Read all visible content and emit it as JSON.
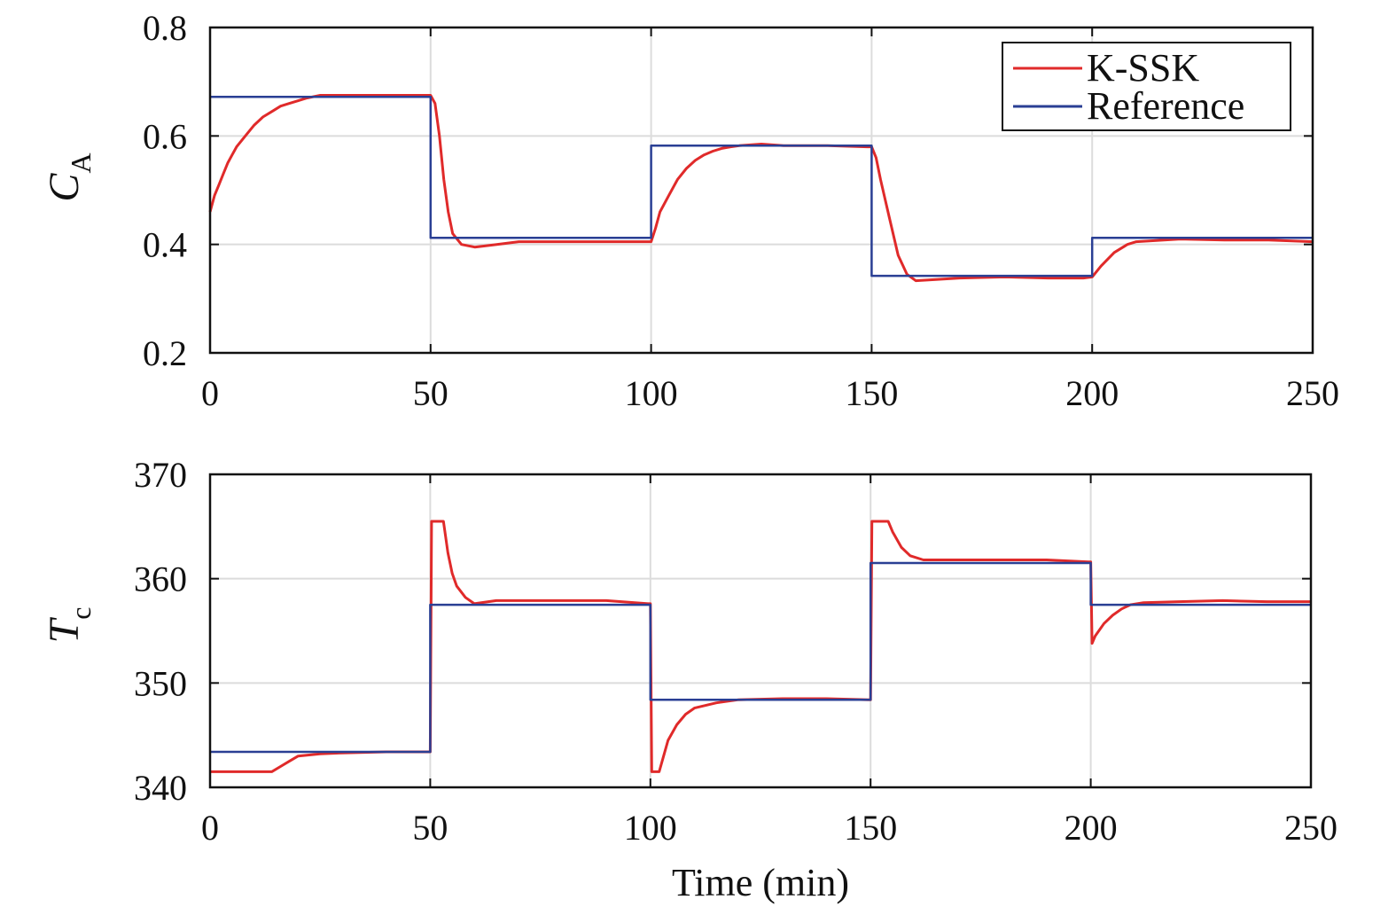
{
  "chart_data": [
    {
      "type": "line",
      "ylabel": "C",
      "ylabel_sub": "A",
      "xlim": [
        0,
        250
      ],
      "ylim": [
        0.2,
        0.8
      ],
      "xticks": [
        0,
        50,
        100,
        150,
        200,
        250
      ],
      "xtick_labels": [
        "0",
        "50",
        "100",
        "150",
        "200",
        "250"
      ],
      "yticks": [
        0.2,
        0.4,
        0.6,
        0.8
      ],
      "ytick_labels": [
        "0.2",
        "0.4",
        "0.6",
        "0.8"
      ],
      "grid": true,
      "legend_position": "top-right",
      "series": [
        {
          "name": "K-SSK",
          "color": "#e02a2a",
          "x": [
            0,
            1,
            2,
            3,
            4,
            5,
            6,
            8,
            10,
            12,
            14,
            16,
            18,
            20,
            22,
            25,
            30,
            35,
            40,
            45,
            49,
            50,
            51,
            52,
            53,
            54,
            55,
            57,
            60,
            65,
            70,
            80,
            90,
            99,
            100,
            101,
            102,
            104,
            106,
            108,
            110,
            112,
            114,
            116,
            118,
            120,
            125,
            130,
            140,
            149,
            150,
            151,
            152,
            154,
            156,
            158,
            160,
            170,
            180,
            190,
            198,
            200,
            202,
            205,
            208,
            210,
            220,
            230,
            240,
            250
          ],
          "y": [
            0.46,
            0.49,
            0.51,
            0.53,
            0.55,
            0.565,
            0.58,
            0.6,
            0.62,
            0.635,
            0.645,
            0.655,
            0.66,
            0.665,
            0.67,
            0.675,
            0.675,
            0.675,
            0.675,
            0.675,
            0.675,
            0.675,
            0.66,
            0.6,
            0.52,
            0.46,
            0.42,
            0.4,
            0.395,
            0.4,
            0.405,
            0.405,
            0.405,
            0.405,
            0.405,
            0.43,
            0.46,
            0.49,
            0.52,
            0.54,
            0.555,
            0.565,
            0.572,
            0.577,
            0.58,
            0.582,
            0.585,
            0.582,
            0.582,
            0.58,
            0.58,
            0.56,
            0.52,
            0.45,
            0.38,
            0.345,
            0.333,
            0.338,
            0.34,
            0.338,
            0.338,
            0.34,
            0.36,
            0.385,
            0.4,
            0.405,
            0.41,
            0.408,
            0.408,
            0.405
          ]
        },
        {
          "name": "Reference",
          "color": "#2a3f94",
          "x": [
            0,
            50,
            50,
            100,
            100,
            150,
            150,
            200,
            200,
            250
          ],
          "y": [
            0.672,
            0.672,
            0.412,
            0.412,
            0.582,
            0.582,
            0.342,
            0.342,
            0.412,
            0.412
          ]
        }
      ]
    },
    {
      "type": "line",
      "ylabel": "T",
      "ylabel_sub": "c",
      "xlabel": "Time (min)",
      "xlim": [
        0,
        250
      ],
      "ylim": [
        340,
        370
      ],
      "xticks": [
        0,
        50,
        100,
        150,
        200,
        250
      ],
      "xtick_labels": [
        "0",
        "50",
        "100",
        "150",
        "200",
        "250"
      ],
      "yticks": [
        340,
        350,
        360,
        370
      ],
      "ytick_labels": [
        "340",
        "350",
        "360",
        "370"
      ],
      "grid": true,
      "series": [
        {
          "name": "K-SSK",
          "color": "#e02a2a",
          "x": [
            0,
            14,
            16,
            18,
            20,
            25,
            30,
            40,
            49.5,
            50,
            50.3,
            53,
            53.5,
            54,
            55,
            56,
            58,
            60,
            65,
            70,
            80,
            90,
            99.5,
            100,
            100.3,
            102,
            103,
            104,
            106,
            108,
            110,
            115,
            120,
            130,
            140,
            149.5,
            150,
            150.3,
            154,
            155,
            157,
            159,
            162,
            170,
            180,
            190,
            199.5,
            200,
            200.3,
            201,
            203,
            205,
            207,
            209,
            212,
            220,
            230,
            240,
            250
          ],
          "y": [
            341.5,
            341.5,
            342,
            342.5,
            343,
            343.2,
            343.3,
            343.4,
            343.4,
            343.4,
            365.5,
            365.5,
            364,
            362.5,
            360.5,
            359.3,
            358.2,
            357.6,
            357.9,
            357.9,
            357.9,
            357.9,
            357.6,
            357.6,
            341.5,
            341.5,
            343,
            344.5,
            346,
            347,
            347.6,
            348.1,
            348.4,
            348.5,
            348.5,
            348.4,
            348.4,
            365.5,
            365.5,
            364.5,
            363,
            362.2,
            361.8,
            361.8,
            361.8,
            361.8,
            361.6,
            361.6,
            353.8,
            354.5,
            355.7,
            356.5,
            357.1,
            357.5,
            357.7,
            357.8,
            357.9,
            357.8,
            357.8
          ]
        },
        {
          "name": "Reference",
          "color": "#2a3f94",
          "x": [
            0,
            50,
            50,
            100,
            100,
            150,
            150,
            200,
            200,
            250
          ],
          "y": [
            343.4,
            343.4,
            357.5,
            357.5,
            348.4,
            348.4,
            361.5,
            361.5,
            357.5,
            357.5
          ]
        }
      ]
    }
  ]
}
